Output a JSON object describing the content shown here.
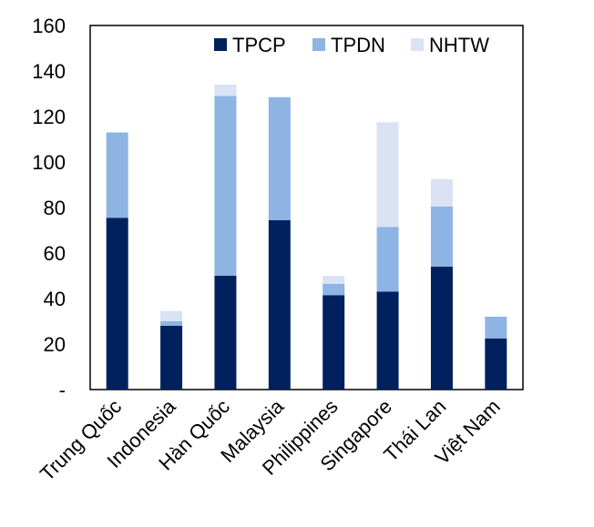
{
  "chart_data": {
    "type": "bar",
    "stacked": true,
    "title": "",
    "xlabel": "",
    "ylabel": "",
    "ylim": [
      0,
      160
    ],
    "yticks": [
      0,
      20,
      40,
      60,
      80,
      100,
      120,
      140,
      160
    ],
    "ytick_labels": [
      "-",
      "20",
      "40",
      "60",
      "80",
      "100",
      "120",
      "140",
      "160"
    ],
    "categories": [
      "Trung Quốc",
      "Indonesia",
      "Hàn Quốc",
      "Malaysia",
      "Philippines",
      "Singapore",
      "Thái Lan",
      "Việt Nam"
    ],
    "series": [
      {
        "name": "TPCP",
        "color": "#00215e",
        "values": [
          75.5,
          28,
          50,
          74.5,
          41.5,
          43,
          54,
          22.5
        ]
      },
      {
        "name": "TPDN",
        "color": "#8db4e2",
        "values": [
          37.5,
          2,
          79,
          54,
          5,
          28.5,
          26.5,
          9.5
        ]
      },
      {
        "name": "NHTW",
        "color": "#dae3f3",
        "values": [
          0,
          4.5,
          5,
          0,
          3.5,
          46,
          12,
          0
        ]
      }
    ],
    "grid": false,
    "legend_position": "top-right"
  }
}
